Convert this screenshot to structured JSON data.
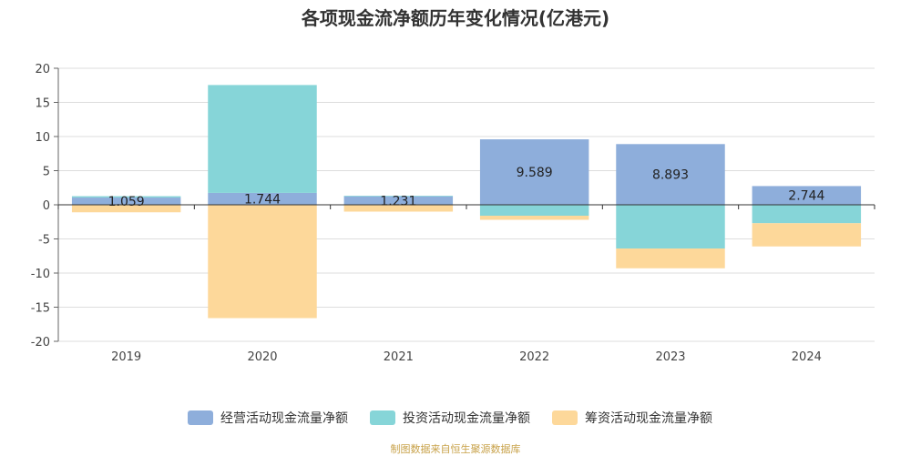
{
  "chart_data": {
    "type": "bar",
    "stacked": true,
    "title": "各项现金流净额历年变化情况(亿港元)",
    "categories": [
      "2019",
      "2020",
      "2021",
      "2022",
      "2023",
      "2024"
    ],
    "ylim": [
      -20,
      20
    ],
    "yticks": [
      -20,
      -15,
      -10,
      -5,
      0,
      5,
      10,
      15,
      20
    ],
    "grid": true,
    "legend_position": "bottom",
    "series": [
      {
        "name": "经营活动现金流量净额",
        "color": "#8eaedb",
        "values": [
          1.059,
          1.744,
          1.231,
          9.589,
          8.893,
          2.744
        ],
        "labels": [
          "1.059",
          "1.744",
          "1.231",
          "9.589",
          "8.893",
          "2.744"
        ]
      },
      {
        "name": "投资活动现金流量净额",
        "color": "#86d5d8",
        "values": [
          0.2,
          15.8,
          0.1,
          -1.6,
          -6.4,
          -2.7
        ]
      },
      {
        "name": "筹资活动现金流量净额",
        "color": "#fdd89a",
        "values": [
          -1.1,
          -16.6,
          -1.0,
          -0.6,
          -2.9,
          -3.4
        ]
      }
    ]
  },
  "source_note": "制图数据来自恒生聚源数据库"
}
